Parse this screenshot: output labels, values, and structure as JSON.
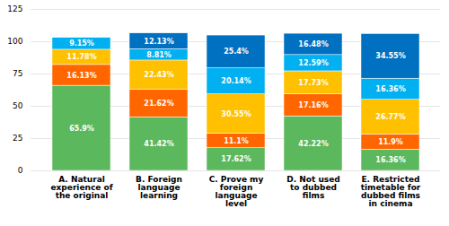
{
  "chart_data": {
    "type": "bar",
    "stacked": true,
    "data_labels": true,
    "grid": true,
    "categories": [
      "A. Natural\nexperience of\nthe original",
      "B. Foreign\nlanguage\nlearning",
      "C. Prove my\nforeign\nlanguage\nlevel",
      "D. Not used\nto dubbed\nfilms",
      "E. Restricted\ntimetable for\ndubbed films\nin cinema"
    ],
    "series": [
      {
        "color": "#5CB85C",
        "values": [
          65.9,
          41.42,
          17.62,
          42.22,
          16.36
        ],
        "value_labels": [
          "65.9%",
          "41.42%",
          "17.62%",
          "42.22%",
          "16.36%"
        ]
      },
      {
        "color": "#FF6600",
        "values": [
          16.13,
          21.62,
          11.1,
          17.16,
          11.9
        ],
        "value_labels": [
          "16.13%",
          "21.62%",
          "11.1%",
          "17.16%",
          "11.9%"
        ]
      },
      {
        "color": "#FFC000",
        "values": [
          11.78,
          22.43,
          30.55,
          17.73,
          26.77
        ],
        "value_labels": [
          "11.78%",
          "22.43%",
          "30.55%",
          "17.73%",
          "26.77%"
        ]
      },
      {
        "color": "#00B0F0",
        "values": [
          9.15,
          8.81,
          20.14,
          12.59,
          16.36
        ],
        "value_labels": [
          "9.15%",
          "8.81%",
          "20.14%",
          "12.59%",
          "16.36%"
        ]
      },
      {
        "color": "#0070C0",
        "values": [
          null,
          12.13,
          25.4,
          16.48,
          34.55
        ],
        "value_labels": [
          null,
          "12.13%",
          "25.4%",
          "16.48%",
          "34.55%"
        ]
      }
    ],
    "ylim": [
      0,
      125
    ],
    "yticks": [
      0,
      25,
      50,
      75,
      100,
      125
    ]
  }
}
